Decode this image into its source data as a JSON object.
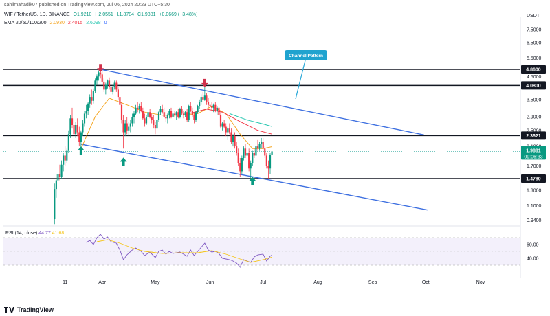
{
  "header": {
    "publisher": "sahilmahadik07 published on TradingView.com, Jul 06, 2024 20:23 UTC+5:30",
    "symbol": "WIF / TetherUS, 1D, BINANCE",
    "o": "O1.9210",
    "h": "H2.0551",
    "l": "L1.8784",
    "c": "C1.9881",
    "chg": "+0.0669 (+3.48%)",
    "ema_label": "EMA 20/50/100/200",
    "ema_vals": [
      "2.0930",
      "2.4015",
      "2.6098",
      "0"
    ],
    "currency": "USDT"
  },
  "colors": {
    "up": "#089981",
    "down": "#f23645",
    "ema20": "#f5a623",
    "ema50": "#f23645",
    "ema100": "#26c6b0",
    "channel": "#3d6fe0",
    "level": "#131722",
    "rsi": "#7e57c2",
    "rsi_ma": "#f5c518"
  },
  "icons": [
    "up-arrow-icon",
    "down-arrow-icon",
    "tradingview-logo-icon"
  ],
  "chart_data": {
    "type": "candlestick",
    "scale": "log",
    "yticks": [
      "7.5000",
      "6.5000",
      "5.5000",
      "4.5000",
      "3.5000",
      "2.9000",
      "2.5000",
      "2.1000",
      "1.7000",
      "1.3000",
      "1.1000",
      "0.9400"
    ],
    "xticks": [
      "11",
      "Apr",
      "May",
      "Jun",
      "Jul",
      "Aug",
      "Sep",
      "Oct",
      "Nov"
    ],
    "levels": [
      {
        "value": 4.86,
        "label": "4.8600"
      },
      {
        "value": 4.08,
        "label": "4.0800"
      },
      {
        "value": 2.3621,
        "label": "2.3621"
      },
      {
        "value": 1.478,
        "label": "1.4780"
      }
    ],
    "last_price": {
      "value": 1.9881,
      "label": "1.9881",
      "countdown": "09:06:33"
    },
    "annotation": "Channel Pattern",
    "channel": {
      "upper": [
        {
          "date": "2024-03-31",
          "price": 4.86
        },
        {
          "date": "2024-09-30",
          "price": 2.38
        }
      ],
      "lower": [
        {
          "date": "2024-03-20",
          "price": 2.15
        },
        {
          "date": "2024-10-02",
          "price": 1.05
        }
      ]
    },
    "markers": [
      {
        "date": "2024-03-31",
        "type": "down",
        "price": 5.0
      },
      {
        "date": "2024-05-29",
        "type": "down",
        "price": 4.25
      },
      {
        "date": "2024-03-20",
        "type": "up",
        "price": 1.98
      },
      {
        "date": "2024-04-13",
        "type": "up",
        "price": 1.75
      },
      {
        "date": "2024-06-25",
        "type": "up",
        "price": 1.42
      }
    ],
    "candles": [
      [
        "2024-03-05",
        0.95,
        1.4,
        0.9,
        1.32
      ],
      [
        "2024-03-06",
        1.32,
        1.55,
        1.2,
        1.45
      ],
      [
        "2024-03-07",
        1.45,
        1.7,
        1.4,
        1.55
      ],
      [
        "2024-03-08",
        1.55,
        1.72,
        1.45,
        1.5
      ],
      [
        "2024-03-09",
        1.5,
        1.8,
        1.48,
        1.72
      ],
      [
        "2024-03-10",
        1.72,
        1.95,
        1.6,
        1.9
      ],
      [
        "2024-03-11",
        1.9,
        2.1,
        1.7,
        1.8
      ],
      [
        "2024-03-12",
        1.8,
        2.05,
        1.75,
        2.0
      ],
      [
        "2024-03-13",
        2.0,
        2.5,
        1.95,
        2.4
      ],
      [
        "2024-03-14",
        2.4,
        2.95,
        2.3,
        2.85
      ],
      [
        "2024-03-15",
        2.85,
        3.2,
        2.55,
        2.65
      ],
      [
        "2024-03-16",
        2.65,
        2.9,
        2.3,
        2.4
      ],
      [
        "2024-03-17",
        2.4,
        2.75,
        2.3,
        2.65
      ],
      [
        "2024-03-18",
        2.65,
        2.85,
        2.35,
        2.45
      ],
      [
        "2024-03-19",
        2.45,
        2.6,
        2.1,
        2.2
      ],
      [
        "2024-03-20",
        2.2,
        2.5,
        2.05,
        2.45
      ],
      [
        "2024-03-21",
        2.45,
        2.8,
        2.35,
        2.7
      ],
      [
        "2024-03-22",
        2.7,
        3.1,
        2.6,
        3.0
      ],
      [
        "2024-03-23",
        3.0,
        3.3,
        2.85,
        3.1
      ],
      [
        "2024-03-24",
        3.1,
        3.4,
        2.95,
        3.35
      ],
      [
        "2024-03-25",
        3.35,
        3.7,
        3.2,
        3.6
      ],
      [
        "2024-03-26",
        3.6,
        3.9,
        3.3,
        3.45
      ],
      [
        "2024-03-27",
        3.45,
        3.95,
        3.35,
        3.85
      ],
      [
        "2024-03-28",
        3.85,
        4.4,
        3.75,
        4.3
      ],
      [
        "2024-03-29",
        4.3,
        4.6,
        4.1,
        4.5
      ],
      [
        "2024-03-30",
        4.5,
        4.8,
        4.3,
        4.7
      ],
      [
        "2024-03-31",
        4.7,
        4.9,
        4.4,
        4.6
      ],
      [
        "2024-04-01",
        4.6,
        4.75,
        4.1,
        4.25
      ],
      [
        "2024-04-02",
        4.25,
        4.4,
        3.8,
        3.9
      ],
      [
        "2024-04-03",
        3.9,
        4.2,
        3.7,
        4.1
      ],
      [
        "2024-04-04",
        4.1,
        4.35,
        3.95,
        4.3
      ],
      [
        "2024-04-05",
        4.3,
        4.45,
        3.9,
        4.0
      ],
      [
        "2024-04-06",
        4.0,
        4.2,
        3.7,
        3.8
      ],
      [
        "2024-04-07",
        3.8,
        4.1,
        3.7,
        4.0
      ],
      [
        "2024-04-08",
        4.0,
        4.3,
        3.9,
        4.2
      ],
      [
        "2024-04-09",
        4.2,
        4.3,
        3.8,
        3.9
      ],
      [
        "2024-04-10",
        3.9,
        4.0,
        3.5,
        3.6
      ],
      [
        "2024-04-11",
        3.6,
        3.8,
        3.2,
        3.3
      ],
      [
        "2024-04-12",
        3.3,
        3.4,
        2.7,
        2.8
      ],
      [
        "2024-04-13",
        2.8,
        2.95,
        2.05,
        2.45
      ],
      [
        "2024-04-14",
        2.45,
        2.8,
        2.35,
        2.7
      ],
      [
        "2024-04-15",
        2.7,
        2.9,
        2.4,
        2.5
      ],
      [
        "2024-04-16",
        2.5,
        2.75,
        2.35,
        2.6
      ],
      [
        "2024-04-17",
        2.6,
        2.8,
        2.45,
        2.7
      ],
      [
        "2024-04-18",
        2.7,
        3.0,
        2.6,
        2.9
      ],
      [
        "2024-04-19",
        2.9,
        3.1,
        2.7,
        3.0
      ],
      [
        "2024-04-20",
        3.0,
        3.3,
        2.95,
        3.2
      ],
      [
        "2024-04-21",
        3.2,
        3.4,
        3.05,
        3.15
      ],
      [
        "2024-04-22",
        3.15,
        3.35,
        3.0,
        3.25
      ],
      [
        "2024-04-23",
        3.25,
        3.4,
        3.05,
        3.1
      ],
      [
        "2024-04-24",
        3.1,
        3.2,
        2.8,
        2.85
      ],
      [
        "2024-04-25",
        2.85,
        3.0,
        2.6,
        2.7
      ],
      [
        "2024-04-26",
        2.7,
        2.95,
        2.65,
        2.9
      ],
      [
        "2024-04-27",
        2.9,
        3.1,
        2.8,
        3.05
      ],
      [
        "2024-04-28",
        3.05,
        3.15,
        2.85,
        2.9
      ],
      [
        "2024-04-29",
        2.9,
        3.0,
        2.7,
        2.8
      ],
      [
        "2024-04-30",
        2.8,
        2.95,
        2.55,
        2.65
      ],
      [
        "2024-05-01",
        2.65,
        2.75,
        2.4,
        2.55
      ],
      [
        "2024-05-02",
        2.55,
        2.85,
        2.5,
        2.8
      ],
      [
        "2024-05-03",
        2.8,
        3.1,
        2.75,
        3.05
      ],
      [
        "2024-05-04",
        3.05,
        3.25,
        2.95,
        3.15
      ],
      [
        "2024-05-05",
        3.15,
        3.3,
        3.0,
        3.05
      ],
      [
        "2024-05-06",
        3.05,
        3.2,
        2.85,
        2.9
      ],
      [
        "2024-05-07",
        2.9,
        3.05,
        2.75,
        2.85
      ],
      [
        "2024-05-08",
        2.85,
        3.0,
        2.7,
        2.95
      ],
      [
        "2024-05-09",
        2.95,
        3.15,
        2.85,
        3.1
      ],
      [
        "2024-05-10",
        3.1,
        3.2,
        2.85,
        2.9
      ],
      [
        "2024-05-11",
        2.9,
        3.05,
        2.8,
        3.0
      ],
      [
        "2024-05-12",
        3.0,
        3.1,
        2.9,
        2.95
      ],
      [
        "2024-05-13",
        2.95,
        3.1,
        2.8,
        3.05
      ],
      [
        "2024-05-14",
        3.05,
        3.15,
        2.85,
        2.9
      ],
      [
        "2024-05-15",
        2.9,
        3.2,
        2.85,
        3.15
      ],
      [
        "2024-05-16",
        3.15,
        3.25,
        2.95,
        3.0
      ],
      [
        "2024-05-17",
        3.0,
        3.1,
        2.85,
        2.95
      ],
      [
        "2024-05-18",
        2.95,
        3.1,
        2.9,
        3.05
      ],
      [
        "2024-05-19",
        3.05,
        3.15,
        2.75,
        2.8
      ],
      [
        "2024-05-20",
        2.8,
        3.3,
        2.75,
        3.25
      ],
      [
        "2024-05-21",
        3.25,
        3.4,
        3.05,
        3.1
      ],
      [
        "2024-05-22",
        3.1,
        3.2,
        2.9,
        2.95
      ],
      [
        "2024-05-23",
        2.95,
        3.05,
        2.7,
        2.8
      ],
      [
        "2024-05-24",
        2.8,
        3.1,
        2.75,
        3.05
      ],
      [
        "2024-05-25",
        3.05,
        3.3,
        3.0,
        3.25
      ],
      [
        "2024-05-26",
        3.25,
        3.5,
        3.15,
        3.4
      ],
      [
        "2024-05-27",
        3.4,
        3.7,
        3.3,
        3.6
      ],
      [
        "2024-05-28",
        3.6,
        3.8,
        3.4,
        3.5
      ],
      [
        "2024-05-29",
        3.5,
        4.05,
        3.45,
        3.65
      ],
      [
        "2024-05-30",
        3.65,
        3.75,
        3.3,
        3.4
      ],
      [
        "2024-05-31",
        3.4,
        3.55,
        3.2,
        3.3
      ],
      [
        "2024-06-01",
        3.3,
        3.45,
        3.15,
        3.25
      ],
      [
        "2024-06-02",
        3.25,
        3.4,
        3.1,
        3.2
      ],
      [
        "2024-06-03",
        3.2,
        3.35,
        3.05,
        3.3
      ],
      [
        "2024-06-04",
        3.3,
        3.4,
        3.05,
        3.1
      ],
      [
        "2024-06-05",
        3.1,
        3.25,
        2.95,
        3.2
      ],
      [
        "2024-06-06",
        3.2,
        3.3,
        2.9,
        2.95
      ],
      [
        "2024-06-07",
        2.95,
        3.05,
        2.55,
        2.6
      ],
      [
        "2024-06-08",
        2.6,
        2.75,
        2.5,
        2.7
      ],
      [
        "2024-06-09",
        2.7,
        2.8,
        2.55,
        2.6
      ],
      [
        "2024-06-10",
        2.6,
        2.7,
        2.35,
        2.45
      ],
      [
        "2024-06-11",
        2.45,
        2.6,
        2.25,
        2.55
      ],
      [
        "2024-06-12",
        2.55,
        2.7,
        2.4,
        2.45
      ],
      [
        "2024-06-13",
        2.45,
        2.55,
        2.15,
        2.2
      ],
      [
        "2024-06-14",
        2.2,
        2.4,
        2.1,
        2.35
      ],
      [
        "2024-06-15",
        2.35,
        2.45,
        2.05,
        2.1
      ],
      [
        "2024-06-16",
        2.1,
        2.2,
        1.9,
        1.95
      ],
      [
        "2024-06-17",
        1.95,
        2.05,
        1.7,
        1.75
      ],
      [
        "2024-06-18",
        1.75,
        1.85,
        1.5,
        1.6
      ],
      [
        "2024-06-19",
        1.6,
        1.9,
        1.55,
        1.85
      ],
      [
        "2024-06-20",
        1.85,
        2.1,
        1.8,
        2.05
      ],
      [
        "2024-06-21",
        2.05,
        2.15,
        1.85,
        1.9
      ],
      [
        "2024-06-22",
        1.9,
        2.0,
        1.8,
        1.95
      ],
      [
        "2024-06-23",
        1.95,
        2.05,
        1.6,
        1.65
      ],
      [
        "2024-06-24",
        1.65,
        1.8,
        1.45,
        1.75
      ],
      [
        "2024-06-25",
        1.75,
        2.0,
        1.7,
        1.95
      ],
      [
        "2024-06-26",
        1.95,
        2.05,
        1.85,
        1.9
      ],
      [
        "2024-06-27",
        1.9,
        2.15,
        1.85,
        2.1
      ],
      [
        "2024-06-28",
        2.1,
        2.25,
        2.0,
        2.05
      ],
      [
        "2024-06-29",
        2.05,
        2.2,
        2.0,
        2.15
      ],
      [
        "2024-06-30",
        2.15,
        2.3,
        2.05,
        2.2
      ],
      [
        "2024-07-01",
        2.2,
        2.3,
        2.0,
        2.05
      ],
      [
        "2024-07-02",
        2.05,
        2.1,
        1.85,
        1.9
      ],
      [
        "2024-07-03",
        1.9,
        1.95,
        1.65,
        1.7
      ],
      [
        "2024-07-04",
        1.7,
        1.8,
        1.48,
        1.65
      ],
      [
        "2024-07-05",
        1.65,
        1.95,
        1.55,
        1.92
      ],
      [
        "2024-07-06",
        1.921,
        2.0551,
        1.8784,
        1.9881
      ]
    ],
    "ema": [
      {
        "name": "EMA 20",
        "color": "#f5a623",
        "points": [
          [
            "2024-03-20",
            2.05
          ],
          [
            "2024-03-28",
            2.9
          ],
          [
            "2024-04-05",
            3.55
          ],
          [
            "2024-04-15",
            3.3
          ],
          [
            "2024-04-25",
            3.05
          ],
          [
            "2024-05-05",
            2.95
          ],
          [
            "2024-05-15",
            2.95
          ],
          [
            "2024-05-25",
            3.0
          ],
          [
            "2024-06-02",
            3.25
          ],
          [
            "2024-06-10",
            3.0
          ],
          [
            "2024-06-18",
            2.4
          ],
          [
            "2024-06-25",
            2.05
          ],
          [
            "2024-07-01",
            2.05
          ],
          [
            "2024-07-06",
            2.093
          ]
        ]
      },
      {
        "name": "EMA 50",
        "color": "#f23645",
        "points": [
          [
            "2024-05-20",
            3.0
          ],
          [
            "2024-05-30",
            3.15
          ],
          [
            "2024-06-08",
            3.05
          ],
          [
            "2024-06-18",
            2.75
          ],
          [
            "2024-06-28",
            2.5
          ],
          [
            "2024-07-06",
            2.4015
          ]
        ]
      },
      {
        "name": "EMA 100",
        "color": "#26c6b0",
        "points": [
          [
            "2024-06-12",
            3.0
          ],
          [
            "2024-06-22",
            2.8
          ],
          [
            "2024-07-01",
            2.68
          ],
          [
            "2024-07-06",
            2.6098
          ]
        ]
      }
    ],
    "rsi": {
      "label": "RSI (14, close)",
      "rsi_value": "44.77",
      "ma_value": "41.68",
      "levels": [
        "60.00",
        "40.00"
      ],
      "ylim": [
        20,
        80
      ],
      "values": [
        [
          "2024-03-23",
          63
        ],
        [
          "2024-03-25",
          66
        ],
        [
          "2024-03-27",
          60
        ],
        [
          "2024-03-29",
          70
        ],
        [
          "2024-03-31",
          75
        ],
        [
          "2024-04-02",
          68
        ],
        [
          "2024-04-04",
          71
        ],
        [
          "2024-04-06",
          64
        ],
        [
          "2024-04-09",
          62
        ],
        [
          "2024-04-11",
          52
        ],
        [
          "2024-04-13",
          38
        ],
        [
          "2024-04-15",
          45
        ],
        [
          "2024-04-18",
          52
        ],
        [
          "2024-04-20",
          55
        ],
        [
          "2024-04-23",
          50
        ],
        [
          "2024-04-25",
          44
        ],
        [
          "2024-04-28",
          49
        ],
        [
          "2024-05-01",
          41
        ],
        [
          "2024-05-03",
          50
        ],
        [
          "2024-05-05",
          52
        ],
        [
          "2024-05-07",
          46
        ],
        [
          "2024-05-09",
          50
        ],
        [
          "2024-05-11",
          47
        ],
        [
          "2024-05-13",
          48
        ],
        [
          "2024-05-15",
          49
        ],
        [
          "2024-05-17",
          46
        ],
        [
          "2024-05-19",
          43
        ],
        [
          "2024-05-21",
          52
        ],
        [
          "2024-05-23",
          44
        ],
        [
          "2024-05-25",
          50
        ],
        [
          "2024-05-27",
          56
        ],
        [
          "2024-05-29",
          62
        ],
        [
          "2024-05-31",
          52
        ],
        [
          "2024-06-02",
          49
        ],
        [
          "2024-06-04",
          50
        ],
        [
          "2024-06-06",
          47
        ],
        [
          "2024-06-08",
          40
        ],
        [
          "2024-06-10",
          39
        ],
        [
          "2024-06-12",
          38
        ],
        [
          "2024-06-14",
          36
        ],
        [
          "2024-06-16",
          33
        ],
        [
          "2024-06-18",
          27
        ],
        [
          "2024-06-20",
          38
        ],
        [
          "2024-06-22",
          36
        ],
        [
          "2024-06-24",
          34
        ],
        [
          "2024-06-26",
          42
        ],
        [
          "2024-06-28",
          45
        ],
        [
          "2024-07-01",
          46
        ],
        [
          "2024-07-03",
          36
        ],
        [
          "2024-07-05",
          43
        ],
        [
          "2024-07-06",
          44.77
        ]
      ],
      "ma": [
        [
          "2024-03-29",
          64
        ],
        [
          "2024-04-04",
          67
        ],
        [
          "2024-04-11",
          62
        ],
        [
          "2024-04-18",
          55
        ],
        [
          "2024-04-25",
          50
        ],
        [
          "2024-05-05",
          47
        ],
        [
          "2024-05-15",
          48
        ],
        [
          "2024-05-25",
          48
        ],
        [
          "2024-06-02",
          51
        ],
        [
          "2024-06-10",
          46
        ],
        [
          "2024-06-18",
          39
        ],
        [
          "2024-06-24",
          34
        ],
        [
          "2024-07-01",
          38
        ],
        [
          "2024-07-06",
          41.68
        ]
      ]
    }
  },
  "footer": {
    "brand": "TradingView"
  }
}
